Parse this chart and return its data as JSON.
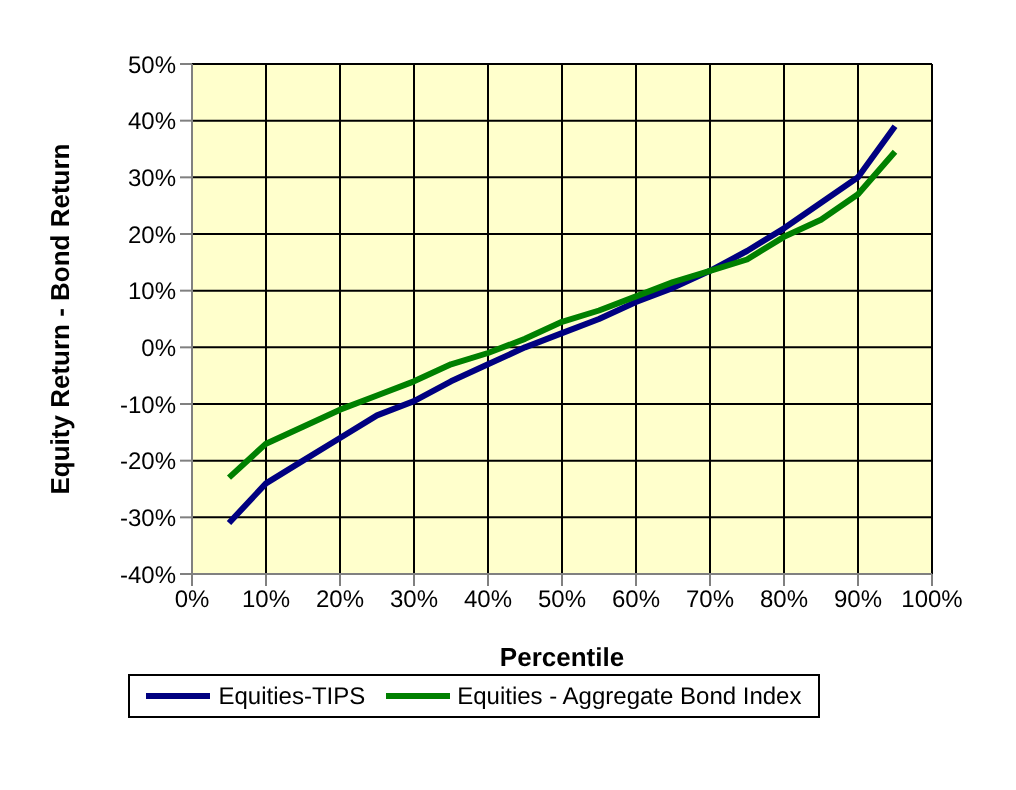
{
  "chart_data": {
    "type": "line",
    "xlabel": "Percentile",
    "ylabel": "Equity Return - Bond Return",
    "x": [
      5,
      10,
      15,
      20,
      25,
      30,
      35,
      40,
      45,
      50,
      55,
      60,
      65,
      70,
      75,
      80,
      85,
      90,
      95
    ],
    "series": [
      {
        "name": "Equities-TIPS",
        "color": "#000080",
        "values": [
          -31,
          -24,
          -20,
          -16,
          -12,
          -9.5,
          -6,
          -3,
          0,
          2.5,
          5,
          8,
          10.5,
          13.5,
          17,
          21,
          25.5,
          30,
          39
        ]
      },
      {
        "name": "Equities - Aggregate Bond Index",
        "color": "#008000",
        "values": [
          -23,
          -17,
          -14,
          -11,
          -8.5,
          -6,
          -3,
          -1,
          1.5,
          4.5,
          6.5,
          9,
          11.5,
          13.5,
          15.5,
          19.5,
          22.5,
          27,
          34.5
        ]
      }
    ],
    "xlim": [
      0,
      100
    ],
    "xticks": [
      {
        "value": 0,
        "label": "0%"
      },
      {
        "value": 10,
        "label": "10%"
      },
      {
        "value": 20,
        "label": "20%"
      },
      {
        "value": 30,
        "label": "30%"
      },
      {
        "value": 40,
        "label": "40%"
      },
      {
        "value": 50,
        "label": "50%"
      },
      {
        "value": 60,
        "label": "60%"
      },
      {
        "value": 70,
        "label": "70%"
      },
      {
        "value": 80,
        "label": "80%"
      },
      {
        "value": 90,
        "label": "90%"
      },
      {
        "value": 100,
        "label": "100%"
      }
    ],
    "ylim": [
      -40,
      50
    ],
    "yticks": [
      {
        "value": -40,
        "label": "-40%"
      },
      {
        "value": -30,
        "label": "-30%"
      },
      {
        "value": -20,
        "label": "-20%"
      },
      {
        "value": -10,
        "label": "-10%"
      },
      {
        "value": 0,
        "label": "0%"
      },
      {
        "value": 10,
        "label": "10%"
      },
      {
        "value": 20,
        "label": "20%"
      },
      {
        "value": 30,
        "label": "30%"
      },
      {
        "value": 40,
        "label": "40%"
      },
      {
        "value": 50,
        "label": "50%"
      }
    ],
    "grid": true,
    "legend": "bottom",
    "marker": "none",
    "line_style": "solid"
  }
}
